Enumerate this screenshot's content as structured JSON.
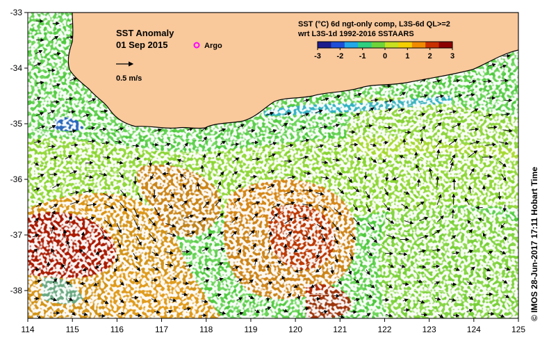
{
  "map": {
    "lon_range": [
      114,
      125
    ],
    "lat_range": [
      -38.5,
      -33
    ],
    "lon_ticks": [
      "114",
      "115",
      "116",
      "117",
      "118",
      "119",
      "120",
      "121",
      "122",
      "123",
      "124",
      "125"
    ],
    "lat_ticks": [
      "-33",
      "-34",
      "-35",
      "-36",
      "-37",
      "-38"
    ],
    "land_color": "#f9c89b",
    "ocean_mid_color": "#4cc83c"
  },
  "title": {
    "line1": "SST Anomaly",
    "line2": "01 Sep 2015"
  },
  "legend": {
    "argo_label": "Argo",
    "argo_color": "#ff00ff",
    "velocity_label": "0.5 m/s"
  },
  "colorbar": {
    "line1": "SST (°C) 6d ngt-only comp, L3S-6d QL>=2",
    "line2": "wrt L3S-1d 1992-2016 SSTAARS",
    "min": -3,
    "max": 3,
    "tick_labels": [
      "-3",
      "-2",
      "-1",
      "0",
      "1",
      "2",
      "3"
    ],
    "colors": [
      "#1c1c8c",
      "#1f4fd8",
      "#24a8e8",
      "#2fd080",
      "#6ed43a",
      "#c8e020",
      "#f5d000",
      "#f08a00",
      "#c83000",
      "#8c0000"
    ]
  },
  "credit": "©  IMOS 28-Jun-2017 17:11 Hobart Time"
}
